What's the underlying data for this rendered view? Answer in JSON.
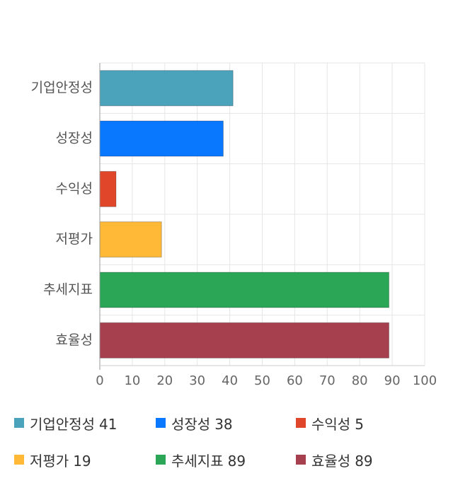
{
  "chart_data": {
    "type": "bar",
    "orientation": "horizontal",
    "categories": [
      "기업안정성",
      "성장성",
      "수익성",
      "저평가",
      "추세지표",
      "효율성"
    ],
    "values": [
      41,
      38,
      5,
      19,
      89,
      89
    ],
    "colors": [
      "#4aa3ba",
      "#0a77ff",
      "#e0472a",
      "#ffb937",
      "#2aa656",
      "#a6404f"
    ],
    "xlim": [
      0,
      100
    ],
    "x_ticks": [
      0,
      10,
      20,
      30,
      40,
      50,
      60,
      70,
      80,
      90,
      100
    ],
    "grid": true,
    "legend_position": "bottom"
  },
  "legend": {
    "items": [
      {
        "label": "기업안정성",
        "value": "41",
        "color": "#4aa3ba"
      },
      {
        "label": "성장성",
        "value": "38",
        "color": "#0a77ff"
      },
      {
        "label": "수익성",
        "value": "5",
        "color": "#e0472a"
      },
      {
        "label": "저평가",
        "value": "19",
        "color": "#ffb937"
      },
      {
        "label": "추세지표",
        "value": "89",
        "color": "#2aa656"
      },
      {
        "label": "효율성",
        "value": "89",
        "color": "#a6404f"
      }
    ]
  }
}
